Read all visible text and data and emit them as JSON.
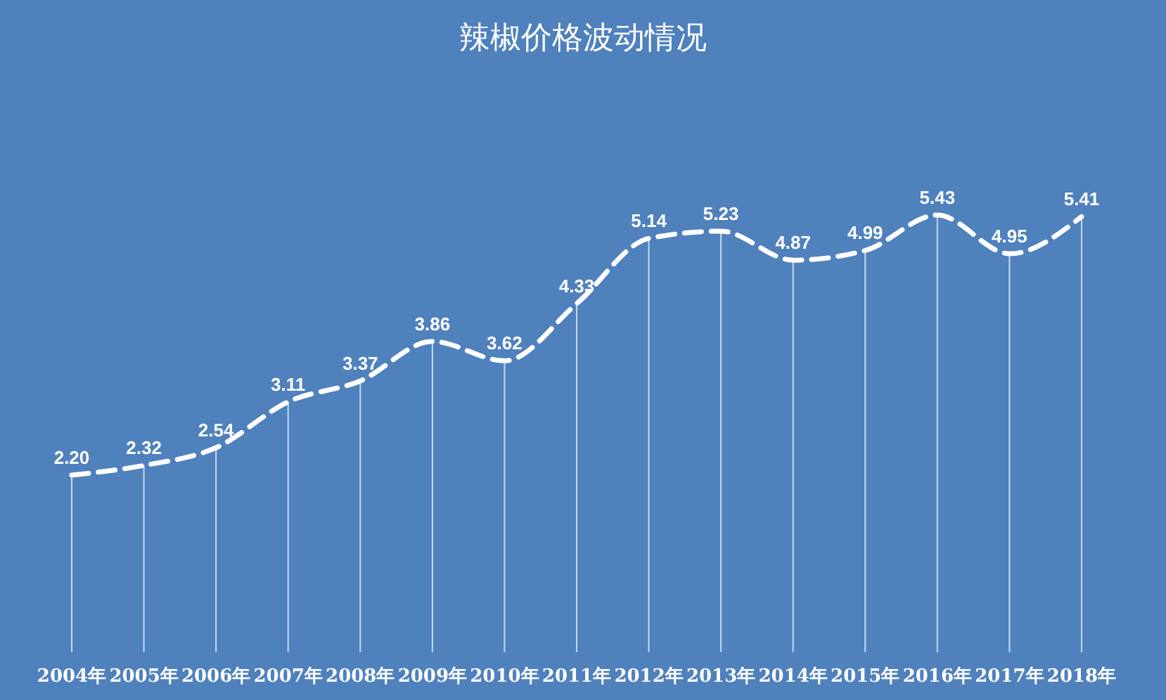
{
  "chart_data": {
    "type": "line",
    "title": "辣椒价格波动情况",
    "categories": [
      "2004年",
      "2005年",
      "2006年",
      "2007年",
      "2008年",
      "2009年",
      "2010年",
      "2011年",
      "2012年",
      "2013年",
      "2014年",
      "2015年",
      "2016年",
      "2017年",
      "2018年"
    ],
    "series": [
      {
        "color": "#ffffff",
        "values": [
          2.2,
          2.32,
          2.54,
          3.11,
          3.37,
          3.86,
          3.62,
          4.33,
          5.14,
          5.23,
          4.87,
          4.99,
          5.43,
          4.95,
          5.41
        ],
        "value_labels": [
          "2.20",
          "2.32",
          "2.54",
          "3.11",
          "3.37",
          "3.86",
          "3.62",
          "4.33",
          "5.14",
          "5.23",
          "4.87",
          "4.99",
          "5.43",
          "4.95",
          "5.41"
        ]
      }
    ],
    "line_style": "dashed",
    "marker": "none",
    "grid": "x"
  }
}
